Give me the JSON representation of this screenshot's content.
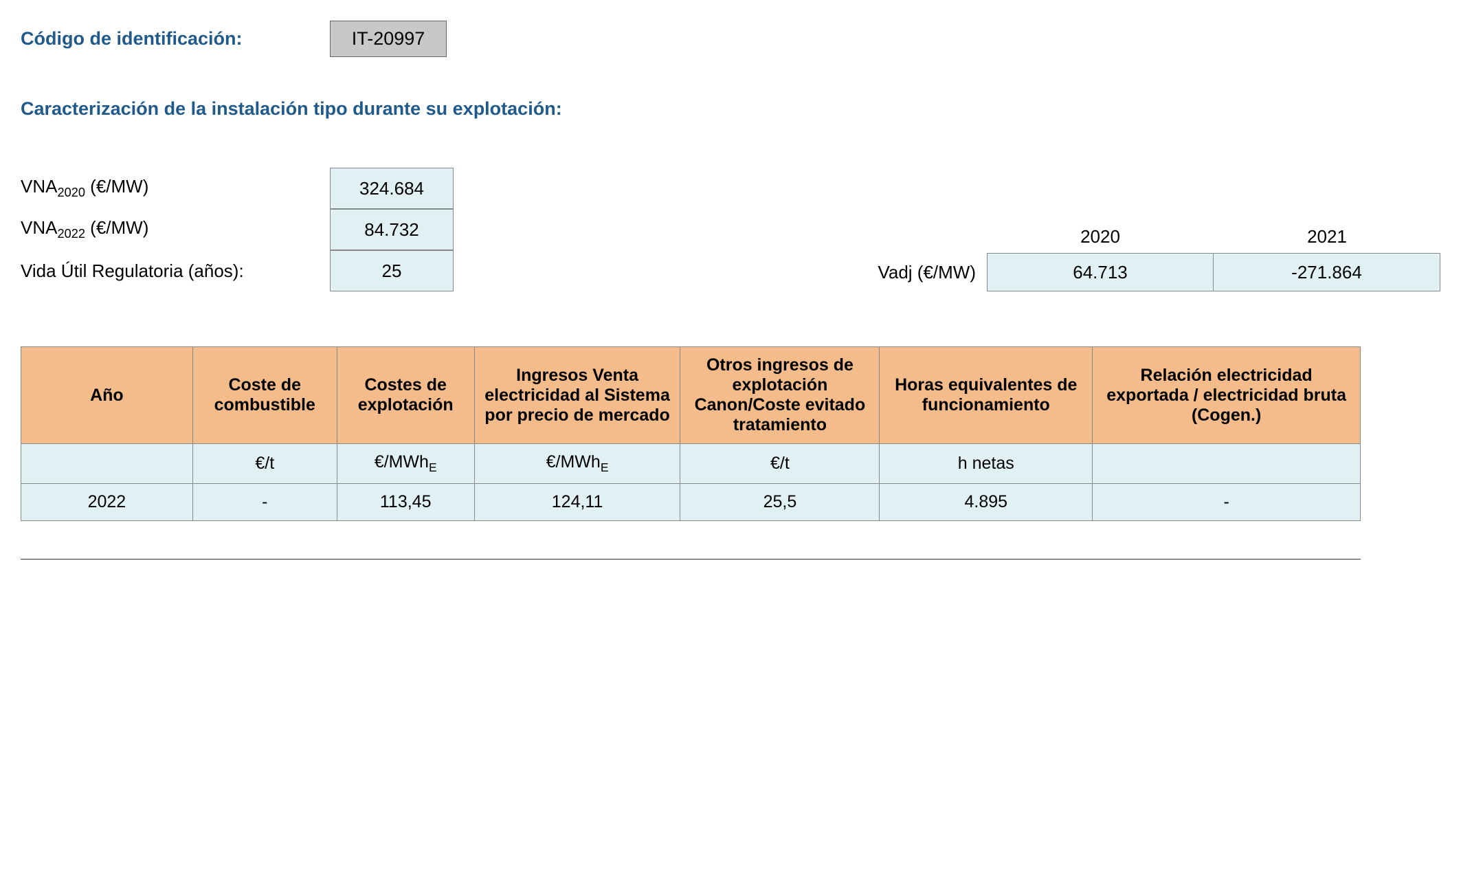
{
  "header": {
    "label": "Código de identificación:",
    "code": "IT-20997"
  },
  "section_title": "Caracterización de la instalación tipo durante su explotación:",
  "params": {
    "vna2020_label_prefix": "VNA",
    "vna2020_sub": "2020",
    "vna2020_unit": " (€/MW)",
    "vna2020_value": "324.684",
    "vna2022_label_prefix": "VNA",
    "vna2022_sub": "2022",
    "vna2022_unit": " (€/MW)",
    "vna2022_value": "84.732",
    "vida_label": "Vida Útil Regulatoria (años):",
    "vida_value": "25"
  },
  "vadj": {
    "label": "Vadj (€/MW)",
    "year1": "2020",
    "year2": "2021",
    "value1": "64.713",
    "value2": "-271.864"
  },
  "table": {
    "headers": {
      "ano": "Año",
      "coste_comb": "Coste de combustible",
      "costes_expl": "Costes de explotación",
      "ingresos_venta": "Ingresos Venta electricidad al Sistema por precio de mercado",
      "otros_ingresos": "Otros ingresos de explotación Canon/Coste evitado tratamiento",
      "horas": "Horas equivalentes de funcionamiento",
      "relacion": "Relación electricidad exportada / electricidad bruta (Cogen.)"
    },
    "units": {
      "ano": "",
      "coste_comb": "€/t",
      "costes_expl_prefix": "€/MWh",
      "costes_expl_sub": "E",
      "ingresos_venta_prefix": "€/MWh",
      "ingresos_venta_sub": "E",
      "otros_ingresos": "€/t",
      "horas": "h netas",
      "relacion": ""
    },
    "rows": [
      {
        "ano": "2022",
        "coste_comb": "-",
        "costes_expl": "113,45",
        "ingresos_venta": "124,11",
        "otros_ingresos": "25,5",
        "horas": "4.895",
        "relacion": "-"
      }
    ]
  },
  "colors": {
    "heading_text": "#1f5a8a",
    "code_box_bg": "#c8c8c8",
    "cell_bg": "#e1f0f2",
    "header_bg": "#f3bc8a",
    "border": "#888888",
    "body_bg": "#ffffff"
  }
}
